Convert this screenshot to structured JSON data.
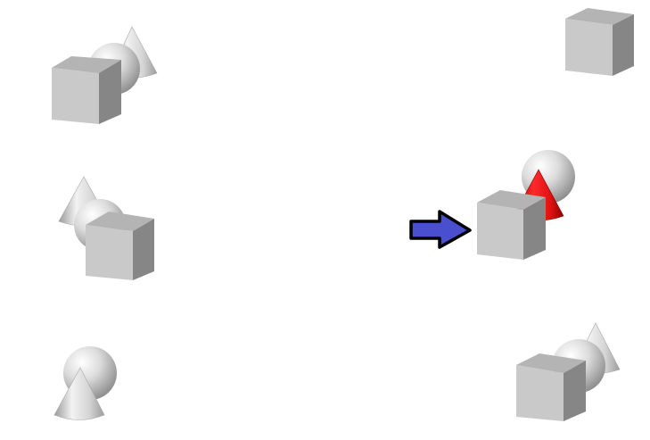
{
  "colors": {
    "background": "#ffffff",
    "arrow_fill": "#4a4fd0",
    "arrow_outline": "#000000",
    "highlight_cone": "#dd1111",
    "cube_front": "#c8c8c8",
    "cube_top": "#b0b0b0",
    "cube_side": "#8a8a8a"
  },
  "groups": [
    {
      "role": "example-top-left",
      "shapes": [
        "cone",
        "sphere",
        "cube"
      ]
    },
    {
      "role": "example-middle-left",
      "shapes": [
        "cone",
        "sphere",
        "cube"
      ]
    },
    {
      "role": "example-bottom-left",
      "shapes": [
        "sphere",
        "cone"
      ]
    },
    {
      "role": "example-top-right",
      "shapes": [
        "cube"
      ]
    },
    {
      "role": "target-middle-right",
      "shapes": [
        "sphere",
        "cone",
        "cube"
      ],
      "highlighted_shape": "cone",
      "highlight_color": "red"
    },
    {
      "role": "example-bottom-right",
      "shapes": [
        "cone",
        "sphere",
        "cube"
      ]
    }
  ],
  "indicator": {
    "icon": "right-arrow-icon",
    "points_to": "target-middle-right"
  }
}
